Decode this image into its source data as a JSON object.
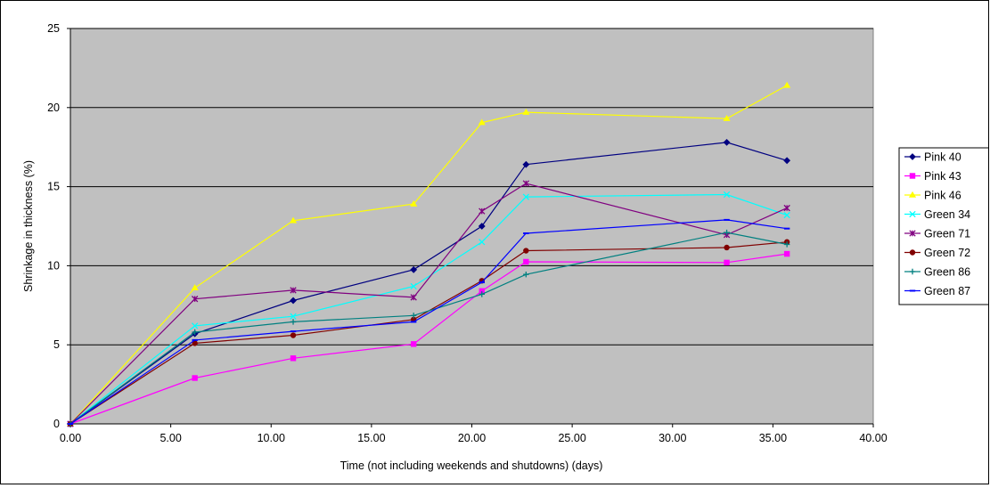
{
  "chart_data": {
    "type": "line",
    "title": "",
    "xlabel": "Time (not including weekends and shutdowns) (days)",
    "ylabel": "Shrinkage in thickness (%)",
    "xlim": [
      0,
      40
    ],
    "ylim": [
      0,
      25
    ],
    "x_ticks": [
      "0.00",
      "5.00",
      "10.00",
      "15.00",
      "20.00",
      "25.00",
      "30.00",
      "35.00",
      "40.00"
    ],
    "y_ticks": [
      "0",
      "5",
      "10",
      "15",
      "20",
      "25"
    ],
    "grid": "horizontal",
    "plot_background": "#c0c0c0",
    "legend_position": "right",
    "series": [
      {
        "name": "Pink 40",
        "color": "#000080",
        "marker": "diamond",
        "x": [
          0,
          6.2,
          11.1,
          17.1,
          20.5,
          22.7,
          32.7,
          35.7
        ],
        "y": [
          0,
          5.7,
          7.8,
          9.75,
          12.5,
          16.4,
          17.8,
          16.65
        ]
      },
      {
        "name": "Pink 43",
        "color": "#ff00ff",
        "marker": "square",
        "x": [
          0,
          6.2,
          11.1,
          17.1,
          20.5,
          22.7,
          32.7,
          35.7
        ],
        "y": [
          0,
          2.9,
          4.15,
          5.05,
          8.4,
          10.25,
          10.2,
          10.75
        ]
      },
      {
        "name": "Pink 46",
        "color": "#ffff00",
        "marker": "triangle",
        "x": [
          0,
          6.2,
          11.1,
          17.1,
          20.5,
          22.7,
          32.7,
          35.7
        ],
        "y": [
          0,
          8.6,
          12.85,
          13.9,
          19.05,
          19.7,
          19.3,
          21.4
        ]
      },
      {
        "name": "Green 34",
        "color": "#00ffff",
        "marker": "x",
        "x": [
          0,
          6.2,
          11.1,
          17.1,
          20.5,
          22.7,
          32.7,
          35.7
        ],
        "y": [
          0,
          6.2,
          6.8,
          8.7,
          11.5,
          14.35,
          14.5,
          13.2
        ]
      },
      {
        "name": "Green 71",
        "color": "#800080",
        "marker": "star",
        "x": [
          0,
          6.2,
          11.1,
          17.1,
          20.5,
          22.7,
          32.7,
          35.7
        ],
        "y": [
          0,
          7.9,
          8.45,
          8.0,
          13.45,
          15.2,
          11.95,
          13.65
        ]
      },
      {
        "name": "Green 72",
        "color": "#800000",
        "marker": "circle",
        "x": [
          0,
          6.2,
          11.1,
          17.1,
          20.5,
          22.7,
          32.7,
          35.7
        ],
        "y": [
          0,
          5.1,
          5.6,
          6.6,
          9.05,
          10.95,
          11.15,
          11.5
        ]
      },
      {
        "name": "Green 86",
        "color": "#008080",
        "marker": "plus",
        "x": [
          0,
          6.2,
          11.1,
          17.1,
          20.5,
          22.7,
          32.7,
          35.7
        ],
        "y": [
          0,
          5.8,
          6.45,
          6.85,
          8.2,
          9.45,
          12.1,
          11.35
        ]
      },
      {
        "name": "Green 87",
        "color": "#0000ff",
        "marker": "dash",
        "x": [
          0,
          6.2,
          11.1,
          17.1,
          20.5,
          22.7,
          32.7,
          35.7
        ],
        "y": [
          0,
          5.3,
          5.85,
          6.45,
          8.95,
          12.05,
          12.9,
          12.35
        ]
      }
    ]
  }
}
